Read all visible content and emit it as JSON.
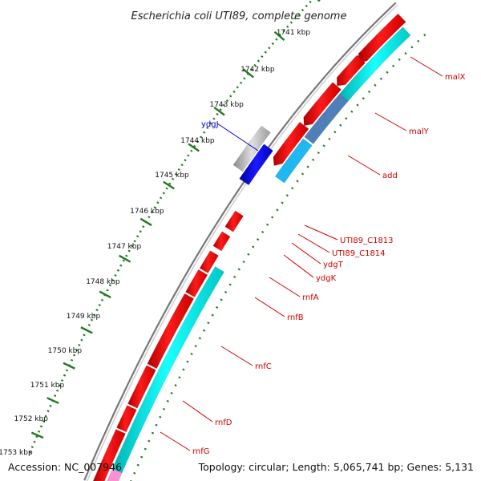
{
  "title": "Escherichia coli UTI89, complete genome",
  "accession": "Accession: NC_007946",
  "summary": "Topology: circular; Length: 5,065,741 bp; Genes: 5,131",
  "scale_labels": [
    "1741 kbp",
    "1742 kbp",
    "1743 kbp",
    "1744 kbp",
    "1745 kbp",
    "1746 kbp",
    "1747 kbp",
    "1748 kbp",
    "1749 kbp",
    "1750 kbp",
    "1751 kbp",
    "1752 kbp",
    "1753 kbp"
  ],
  "genes": [
    {
      "name": "malX",
      "color": "#cc0000"
    },
    {
      "name": "malY",
      "color": "#cc0000"
    },
    {
      "name": "add",
      "color": "#cc0000"
    },
    {
      "name": "ydgJ",
      "color": "#0000cc"
    },
    {
      "name": "UTI89_C1813",
      "color": "#cc0000"
    },
    {
      "name": "UTI89_C1814",
      "color": "#cc0000"
    },
    {
      "name": "ydgT",
      "color": "#cc0000"
    },
    {
      "name": "ydgK",
      "color": "#cc0000"
    },
    {
      "name": "rnfA",
      "color": "#cc0000"
    },
    {
      "name": "rnfB",
      "color": "#cc0000"
    },
    {
      "name": "rnfC",
      "color": "#cc0000"
    },
    {
      "name": "rnfD",
      "color": "#cc0000"
    },
    {
      "name": "rnfG",
      "color": "#cc0000"
    }
  ],
  "colors": {
    "cds": "#ff0000",
    "cds_shade": "#b30000",
    "cyan": "#00e5e5",
    "steel_blue": "#4f7fb8",
    "sky_blue": "#1fb8f0",
    "grey": "#b8b8b8",
    "blue": "#0000ee",
    "pink": "#ff8fd0",
    "scale_green": "#1f7a1f",
    "backbone": "#999999"
  }
}
